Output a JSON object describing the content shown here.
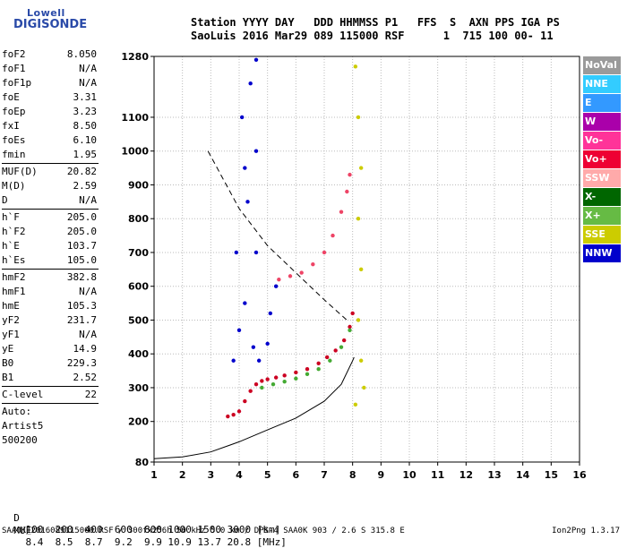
{
  "logo": {
    "line1": "Lowell",
    "line2": "DIGISONDE"
  },
  "header": {
    "line1": "Station YYYY DAY   DDD HHMMSS P1   FFS  S  AXN PPS IGA PS",
    "line2": "SaoLuis 2016 Mar29 089 115000 RSF      1  715 100 00- 11"
  },
  "params": {
    "groups": [
      [
        [
          "foF2",
          "8.050"
        ],
        [
          "foF1",
          "N/A"
        ],
        [
          "foF1p",
          "N/A"
        ],
        [
          "foE",
          "3.31"
        ],
        [
          "foEp",
          "3.23"
        ],
        [
          "fxI",
          "8.50"
        ],
        [
          "foEs",
          "6.10"
        ],
        [
          "fmin",
          "1.95"
        ]
      ],
      [
        [
          "MUF(D)",
          "20.82"
        ],
        [
          "M(D)",
          "2.59"
        ],
        [
          "D",
          "N/A"
        ]
      ],
      [
        [
          "h`F",
          "205.0"
        ],
        [
          "h`F2",
          "205.0"
        ],
        [
          "h`E",
          "103.7"
        ],
        [
          "h`Es",
          "105.0"
        ]
      ],
      [
        [
          "hmF2",
          "382.8"
        ],
        [
          "hmF1",
          "N/A"
        ],
        [
          "hmE",
          "105.3"
        ],
        [
          "yF2",
          "231.7"
        ],
        [
          "yF1",
          "N/A"
        ],
        [
          "yE",
          "14.9"
        ],
        [
          "B0",
          "229.3"
        ],
        [
          "B1",
          "2.52"
        ]
      ],
      [
        [
          "C-level",
          "22"
        ]
      ]
    ],
    "auto_label": "Auto:",
    "artist": "Artist5",
    "artist_code": "500200"
  },
  "legend": [
    {
      "label": "NoVal",
      "color": "#9a9a9a"
    },
    {
      "label": "NNE",
      "color": "#33ccff"
    },
    {
      "label": "E",
      "color": "#3399ff"
    },
    {
      "label": "W",
      "color": "#aa00aa"
    },
    {
      "label": "Vo-",
      "color": "#ff3399"
    },
    {
      "label": "Vo+",
      "color": "#ee0033"
    },
    {
      "label": "SSW",
      "color": "#ffaaaa"
    },
    {
      "label": "X-",
      "color": "#006600"
    },
    {
      "label": "X+",
      "color": "#66bb44"
    },
    {
      "label": "SSE",
      "color": "#cccc00"
    },
    {
      "label": "NNW",
      "color": "#0000cc"
    }
  ],
  "muf_table": {
    "d_label": "D",
    "d_values": [
      "100",
      "200",
      "400",
      "600",
      "800",
      "1000",
      "1500",
      "3000"
    ],
    "d_unit": "[km]",
    "muf_label": "MUF",
    "muf_values": [
      "8.4",
      "8.5",
      "8.7",
      "9.2",
      "9.9",
      "10.9",
      "13.7",
      "20.8"
    ],
    "muf_unit": "[MHz]"
  },
  "footer": "SAA0K_2016089115000.RSF / 300fx256h 50 kHz 5.0 km / DPS-4 SAA0K 903 / 2.6 S 315.8 E",
  "version": "Ion2Png 1.3.17",
  "chart_data": {
    "type": "scatter",
    "xlim": [
      1,
      16
    ],
    "ylim": [
      80,
      1280
    ],
    "x_ticks": [
      1,
      2,
      3,
      4,
      5,
      6,
      7,
      8,
      9,
      10,
      11,
      12,
      13,
      14,
      15,
      16
    ],
    "y_ticks": [
      80,
      200,
      300,
      400,
      500,
      600,
      700,
      800,
      900,
      1000,
      1100,
      1280
    ],
    "grid": true,
    "series": [
      {
        "name": "Vo+",
        "color": "#cc0022",
        "points": [
          [
            3.6,
            215
          ],
          [
            3.8,
            220
          ],
          [
            4.0,
            230
          ],
          [
            4.2,
            260
          ],
          [
            4.4,
            290
          ],
          [
            4.6,
            310
          ],
          [
            4.8,
            320
          ],
          [
            5.0,
            325
          ],
          [
            5.3,
            330
          ],
          [
            5.6,
            336
          ],
          [
            6.0,
            345
          ],
          [
            6.4,
            355
          ],
          [
            6.8,
            372
          ],
          [
            7.1,
            390
          ],
          [
            7.4,
            410
          ],
          [
            7.7,
            440
          ],
          [
            7.9,
            480
          ],
          [
            8.0,
            520
          ]
        ]
      },
      {
        "name": "X+",
        "color": "#44aa33",
        "points": [
          [
            4.8,
            300
          ],
          [
            5.2,
            310
          ],
          [
            5.6,
            318
          ],
          [
            6.0,
            327
          ],
          [
            6.4,
            340
          ],
          [
            6.8,
            355
          ],
          [
            7.2,
            380
          ],
          [
            7.6,
            420
          ],
          [
            7.9,
            470
          ]
        ]
      },
      {
        "name": "Vo-",
        "color": "#ee4466",
        "points": [
          [
            5.4,
            620
          ],
          [
            5.8,
            630
          ],
          [
            6.2,
            640
          ],
          [
            6.6,
            665
          ],
          [
            7.0,
            700
          ],
          [
            7.3,
            750
          ],
          [
            7.6,
            820
          ],
          [
            7.8,
            880
          ],
          [
            7.9,
            930
          ]
        ]
      },
      {
        "name": "SSE",
        "color": "#cccc00",
        "points": [
          [
            8.1,
            1250
          ],
          [
            8.2,
            1100
          ],
          [
            8.3,
            950
          ],
          [
            8.2,
            800
          ],
          [
            8.3,
            650
          ],
          [
            8.2,
            500
          ],
          [
            8.3,
            380
          ],
          [
            8.4,
            300
          ],
          [
            8.1,
            250
          ]
        ]
      },
      {
        "name": "NNW",
        "color": "#0000cc",
        "points": [
          [
            3.8,
            380
          ],
          [
            4.0,
            470
          ],
          [
            4.2,
            550
          ],
          [
            4.5,
            420
          ],
          [
            3.9,
            700
          ],
          [
            4.3,
            850
          ],
          [
            4.6,
            1000
          ],
          [
            4.1,
            1100
          ],
          [
            4.4,
            1200
          ],
          [
            4.6,
            1270
          ],
          [
            5.1,
            520
          ],
          [
            5.3,
            600
          ],
          [
            4.2,
            950
          ],
          [
            4.6,
            700
          ],
          [
            4.7,
            380
          ],
          [
            5.0,
            430
          ]
        ]
      }
    ],
    "reference_lines": [
      {
        "name": "profile",
        "style": "solid",
        "points": [
          [
            1.0,
            90
          ],
          [
            2.0,
            95
          ],
          [
            3.0,
            110
          ],
          [
            4.0,
            140
          ],
          [
            5.0,
            175
          ],
          [
            6.0,
            210
          ],
          [
            7.0,
            260
          ],
          [
            7.6,
            310
          ],
          [
            8.0,
            380
          ],
          [
            8.05,
            390
          ]
        ]
      },
      {
        "name": "profile-dashed",
        "style": "dashed",
        "points": [
          [
            2.9,
            1000
          ],
          [
            4.0,
            830
          ],
          [
            5.0,
            720
          ],
          [
            6.0,
            640
          ],
          [
            7.0,
            560
          ],
          [
            7.8,
            500
          ]
        ]
      }
    ]
  }
}
